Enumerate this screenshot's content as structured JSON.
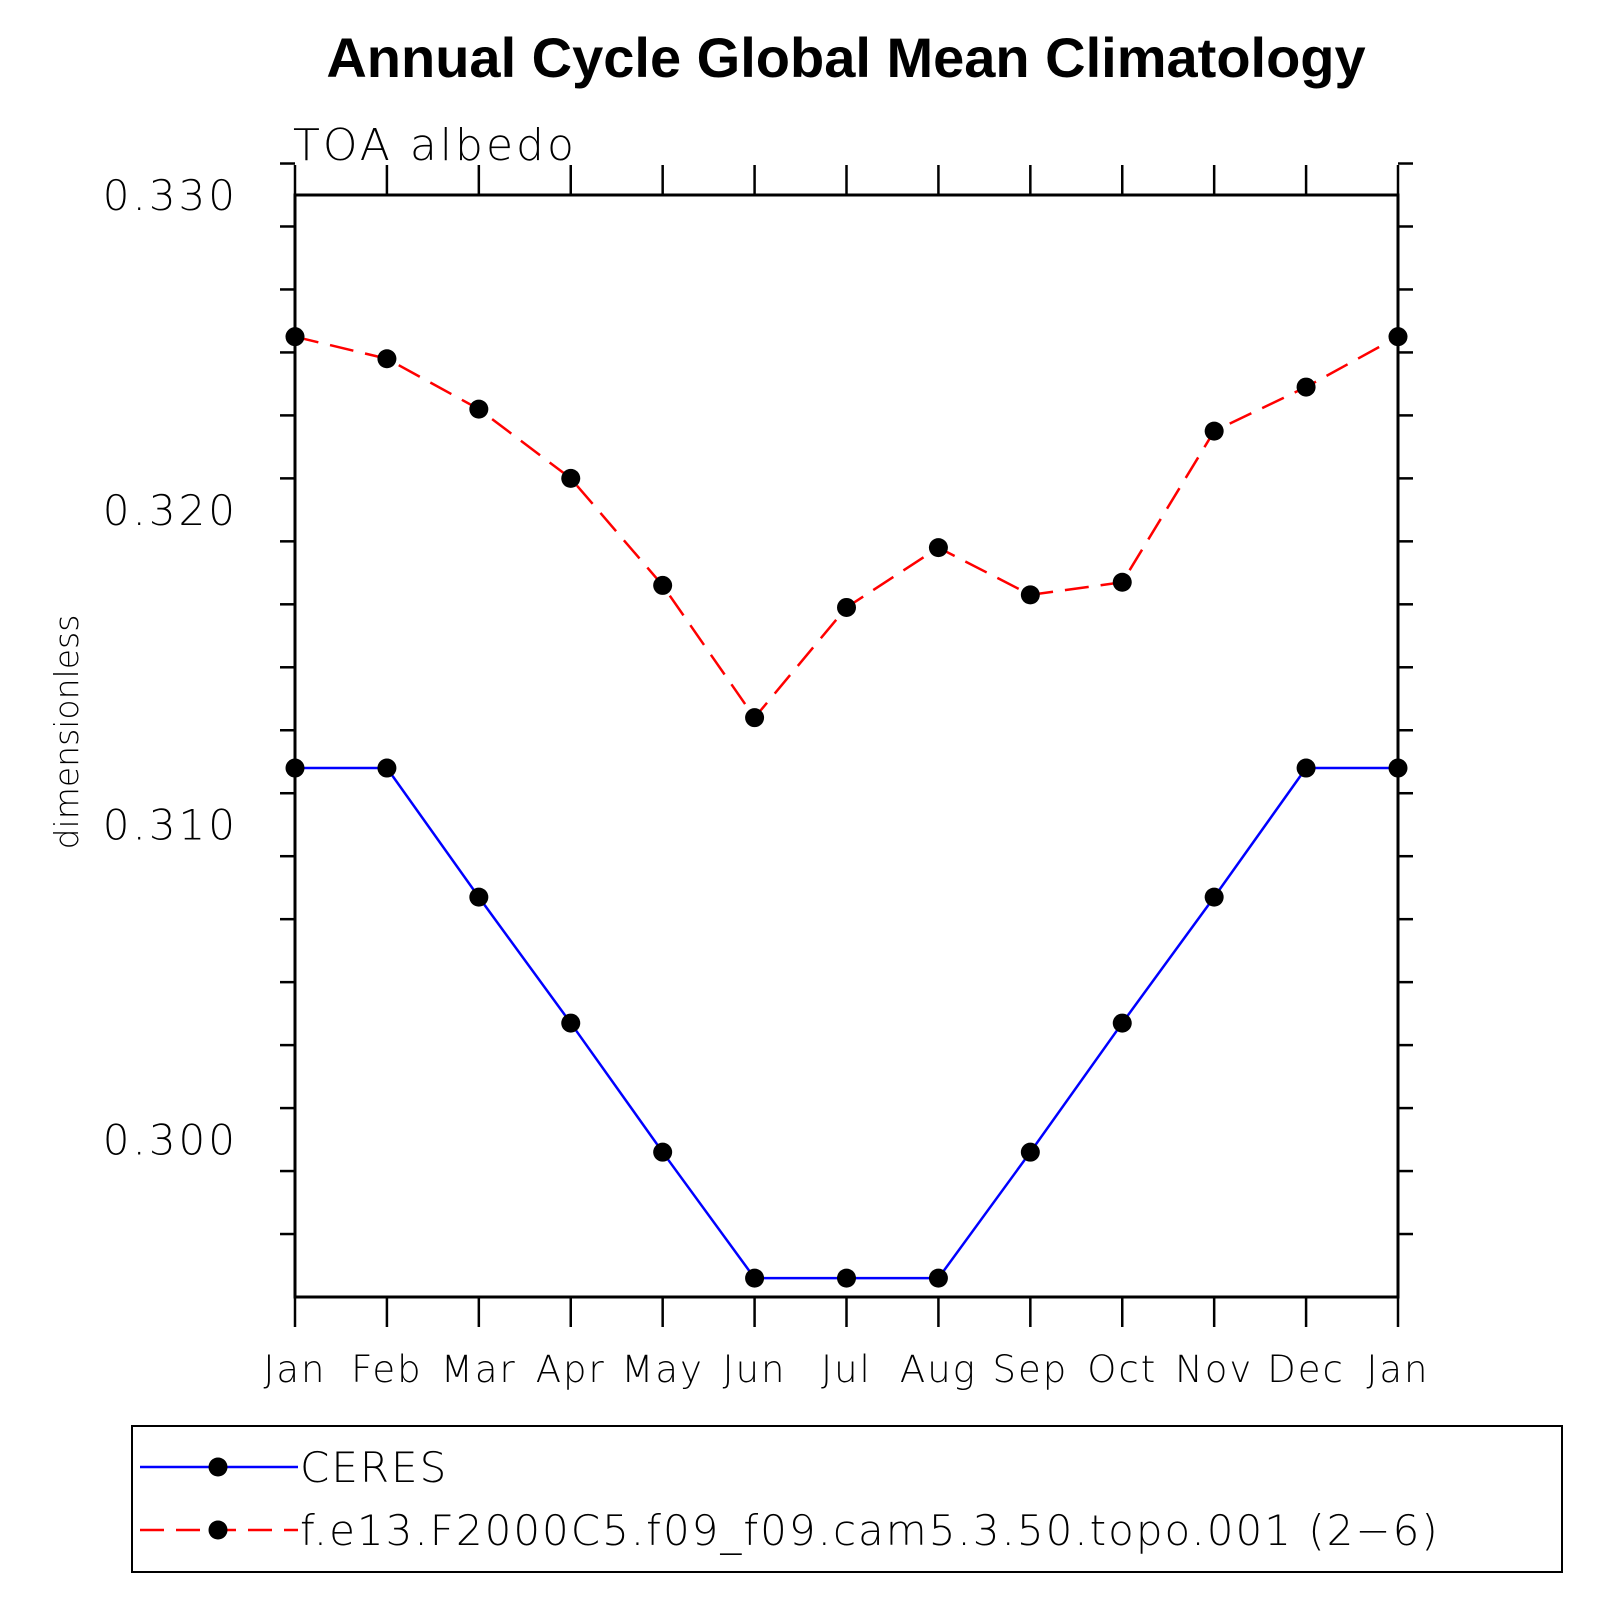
{
  "chart_data": {
    "type": "line",
    "title": "Annual Cycle Global Mean Climatology",
    "subtitle": "TOA albedo",
    "ylabel": "dimensionless",
    "xlabel": "",
    "categories": [
      "Jan",
      "Feb",
      "Mar",
      "Apr",
      "May",
      "Jun",
      "Jul",
      "Aug",
      "Sep",
      "Oct",
      "Nov",
      "Dec",
      "Jan"
    ],
    "ylim": [
      0.295,
      0.33
    ],
    "y_major_ticks": [
      0.3,
      0.31,
      0.32,
      0.33
    ],
    "y_tick_labels": [
      "0.300",
      "0.310",
      "0.320",
      "0.330"
    ],
    "y_minor_step": 0.002,
    "grid": false,
    "legend_position": "bottom",
    "series": [
      {
        "name": "CERES",
        "color": "#0000ff",
        "dash": "solid",
        "marker": "filled-circle",
        "values": [
          0.3118,
          0.3118,
          0.3077,
          0.3037,
          0.2996,
          0.2956,
          0.2956,
          0.2956,
          0.2996,
          0.3037,
          0.3077,
          0.3118,
          0.3118
        ]
      },
      {
        "name": "f.e13.F2000C5.f09_f09.cam5.3.50.topo.001 (2−6)",
        "color": "#ff0000",
        "dash": "dashed",
        "marker": "filled-circle",
        "values": [
          0.3255,
          0.3248,
          0.3232,
          0.321,
          0.3176,
          0.3134,
          0.3169,
          0.3188,
          0.3173,
          0.3177,
          0.3225,
          0.3239,
          0.3255
        ]
      }
    ]
  }
}
